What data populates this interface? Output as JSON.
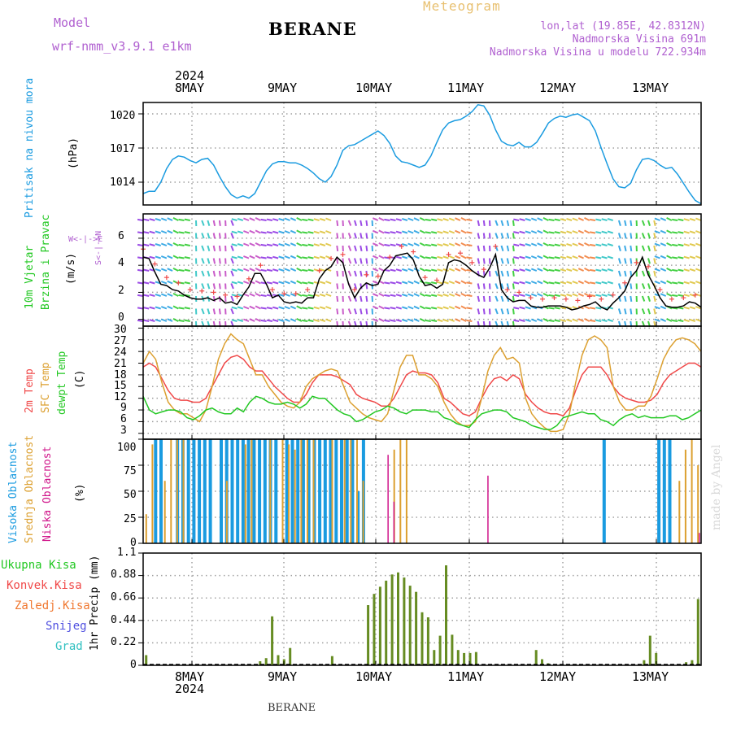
{
  "header": {
    "model_label": "Model",
    "model_name": "wrf-nmm_v3.9.1 e1km",
    "station": "BERANE",
    "meteogram_label": "Meteogram",
    "lonlat": "lon,lat (19.85E, 42.8312N)",
    "elevation": "Nadmorska Visina 691m",
    "model_elevation": "Nadmorska Visina u modelu 722.934m",
    "watermark": "made by Angel",
    "footer_station": "BERANE"
  },
  "colors": {
    "pressure": "#1a9be0",
    "temp2m": "#f04848",
    "sfc": "#dca030",
    "dewpt": "#22c822",
    "high": "#1a9be0",
    "mid": "#dca030",
    "low": "#d0168a",
    "rain": "#668c22",
    "conv": "#e03c3c",
    "grid": "#a0a0a0"
  },
  "axes": {
    "year": "2024",
    "days": [
      "8MAY",
      "9MAY",
      "10MAY",
      "11MAY",
      "12MAY",
      "13MAY"
    ]
  },
  "panels": {
    "pressure": {
      "label": "Pritisak na nivou mora",
      "unit": "(hPa)",
      "ticks": [
        "1014",
        "1017",
        "1020"
      ]
    },
    "wind": {
      "label1": "10m Vjetar",
      "label2": "Brzina i Pravac",
      "unit": "(m/s)",
      "ticks": [
        "0",
        "2",
        "4",
        "6"
      ],
      "compass_ns": "S<-|->N",
      "compass_we": "W<-|->E"
    },
    "temp": {
      "label1": "2m Temp",
      "label2": "SFC Temp",
      "label3": "dewpt Temp",
      "unit": "(C)",
      "ticks": [
        "3",
        "6",
        "9",
        "12",
        "15",
        "18",
        "21",
        "24",
        "27",
        "30"
      ]
    },
    "cloud": {
      "label1": "Visoka Oblacnost",
      "label2": "Srednja Oblacnost",
      "label3": "Niska Oblacnost",
      "unit": "(%)",
      "ticks": [
        "0",
        "25",
        "50",
        "75",
        "100"
      ]
    },
    "precip": {
      "legend": [
        "Ukupna Kisa",
        "Konvek.Kisa",
        "Zaledj.Kisa",
        "Snijeg",
        "Grad"
      ],
      "unit": "1hr Precip (mm)",
      "ticks": [
        "0",
        "0.22",
        "0.44",
        "0.66",
        "0.88",
        "1.1"
      ]
    }
  },
  "chart_data": [
    {
      "type": "line",
      "x_unit": "hours",
      "series": [
        {
          "values": [
            1013.0,
            1013.2,
            1013.2,
            1014.0,
            1015.2,
            1016.0,
            1016.3,
            1016.2,
            1015.9,
            1015.7,
            1016.0,
            1016.1,
            1015.5,
            1014.5,
            1013.6,
            1012.9,
            1012.6,
            1012.8,
            1012.6,
            1013.0,
            1014.0,
            1015.0,
            1015.6,
            1015.8,
            1015.8,
            1015.7,
            1015.7,
            1015.5,
            1015.2,
            1014.8,
            1014.3,
            1014.0,
            1014.5,
            1015.5,
            1016.8,
            1017.2,
            1017.3,
            1017.6,
            1017.9,
            1018.2,
            1018.5,
            1018.1,
            1017.4,
            1016.3,
            1015.8,
            1015.7,
            1015.5,
            1015.3,
            1015.5,
            1016.3,
            1017.5,
            1018.6,
            1019.2,
            1019.4,
            1019.5,
            1019.8,
            1020.2,
            1020.8,
            1020.7,
            1019.9,
            1018.6,
            1017.6,
            1017.3,
            1017.2,
            1017.5,
            1017.1,
            1017.1,
            1017.5,
            1018.3,
            1019.2,
            1019.6,
            1019.8,
            1019.7,
            1019.9,
            1020.0,
            1019.7,
            1019.4,
            1018.5,
            1017.0,
            1015.6,
            1014.3,
            1013.6,
            1013.5,
            1013.9,
            1015.1,
            1016.0,
            1016.1,
            1015.9,
            1015.5,
            1015.2,
            1015.3,
            1014.7,
            1013.9,
            1013.1,
            1012.4,
            1012.1
          ]
        }
      ],
      "ylim": [
        1012,
        1021
      ]
    },
    {
      "type": "line",
      "x_unit": "hours",
      "series": [
        {
          "values": [
            4.6,
            4.5,
            3.5,
            2.6,
            2.5,
            2.2,
            2.1,
            1.8,
            1.6,
            1.5,
            1.5,
            1.6,
            1.4,
            1.6,
            1.2,
            1.3,
            1.1,
            1.8,
            2.4,
            3.4,
            3.4,
            2.6,
            1.6,
            1.8,
            1.3,
            1.2,
            1.3,
            1.2,
            1.6,
            1.6,
            3.0,
            3.6,
            3.9,
            4.6,
            4.2,
            2.6,
            1.6,
            2.3,
            2.7,
            2.5,
            2.6,
            3.6,
            4.0,
            4.7,
            4.8,
            4.9,
            4.4,
            3.2,
            2.5,
            2.6,
            2.3,
            2.6,
            4.2,
            4.4,
            4.3,
            4.0,
            3.6,
            3.3,
            3.1,
            3.8,
            4.8,
            2.2,
            1.6,
            1.3,
            1.4,
            1.4,
            1.0,
            0.9,
            0.9,
            1.0,
            1.0,
            1.0,
            0.9,
            0.7,
            0.8,
            1.0,
            1.1,
            1.3,
            0.9,
            0.7,
            1.2,
            1.6,
            2.1,
            3.1,
            3.6,
            4.6,
            3.3,
            2.5,
            1.6,
            1.0,
            0.9,
            0.9,
            1.0,
            1.3,
            1.2,
            0.9
          ]
        }
      ],
      "ylim": [
        -0.5,
        7.8
      ]
    },
    {
      "type": "line",
      "x_unit": "hours",
      "series": [
        {
          "name": "2m Temp",
          "values": [
            20.0,
            21.0,
            20.0,
            17.0,
            14.0,
            12.0,
            11.5,
            11.5,
            11.0,
            11.0,
            12.0,
            15.0,
            18.0,
            21.0,
            22.5,
            23.0,
            22.0,
            20.0,
            19.0,
            19.0,
            17.0,
            15.0,
            13.5,
            12.0,
            11.0,
            11.0,
            13.0,
            16.0,
            18.0,
            18.0,
            18.0,
            17.5,
            16.5,
            15.5,
            13.0,
            12.0,
            11.5,
            11.0,
            10.0,
            10.0,
            12.0,
            15.0,
            18.0,
            19.0,
            18.5,
            18.5,
            18.0,
            16.0,
            12.0,
            11.0,
            9.5,
            8.0,
            7.5,
            8.5,
            12.0,
            15.0,
            17.0,
            17.5,
            16.5,
            18.0,
            17.0,
            13.0,
            11.0,
            9.5,
            8.5,
            8.0,
            8.0,
            7.5,
            9.5,
            14.0,
            18.0,
            20.0,
            20.0,
            20.0,
            18.0,
            15.0,
            13.0,
            12.0,
            11.5,
            11.0,
            11.0,
            11.5,
            13.0,
            16.0,
            18.0,
            19.0,
            20.0,
            21.0,
            21.0,
            20.0
          ]
        },
        {
          "name": "SFC Temp",
          "values": [
            21.0,
            24.0,
            22.0,
            16.0,
            11.0,
            9.0,
            8.0,
            8.0,
            7.0,
            6.0,
            9.0,
            15.0,
            22.0,
            26.0,
            28.5,
            27.0,
            26.0,
            22.0,
            18.0,
            18.0,
            15.0,
            13.0,
            11.0,
            10.0,
            9.5,
            11.0,
            15.0,
            17.0,
            18.0,
            19.0,
            19.5,
            19.0,
            15.0,
            11.0,
            9.5,
            8.0,
            7.0,
            6.5,
            6.0,
            8.0,
            14.0,
            20.0,
            23.0,
            23.0,
            18.0,
            18.0,
            17.0,
            15.0,
            11.0,
            8.0,
            6.0,
            5.0,
            5.0,
            6.0,
            12.0,
            19.0,
            23.0,
            25.0,
            22.0,
            22.5,
            21.0,
            12.0,
            8.0,
            6.0,
            4.5,
            3.5,
            3.5,
            4.0,
            8.0,
            16.0,
            23.0,
            27.0,
            28.0,
            27.0,
            25.0,
            15.0,
            11.0,
            9.0,
            9.0,
            10.0,
            10.0,
            12.5,
            17.0,
            22.0,
            25.0,
            27.0,
            27.5,
            27.0,
            26.0,
            24.0
          ]
        },
        {
          "name": "dewpt Temp",
          "values": [
            12.5,
            9.0,
            8.0,
            8.5,
            9.0,
            9.0,
            8.5,
            7.0,
            6.5,
            7.5,
            9.0,
            9.5,
            8.5,
            8.0,
            8.0,
            9.5,
            8.5,
            11.0,
            12.5,
            12.0,
            11.0,
            10.5,
            10.5,
            11.0,
            10.5,
            9.5,
            10.5,
            12.5,
            12.0,
            12.0,
            10.5,
            9.0,
            8.0,
            7.5,
            6.0,
            6.5,
            7.5,
            8.5,
            9.0,
            10.0,
            9.5,
            8.5,
            8.0,
            9.0,
            9.0,
            9.0,
            8.5,
            8.5,
            7.0,
            6.5,
            5.5,
            5.0,
            4.5,
            6.5,
            8.0,
            8.5,
            9.0,
            9.0,
            8.5,
            7.0,
            6.5,
            6.0,
            5.0,
            4.5,
            4.0,
            4.0,
            5.0,
            7.0,
            7.5,
            8.0,
            8.5,
            8.0,
            8.0,
            6.5,
            6.0,
            5.0,
            6.5,
            7.5,
            8.0,
            7.0,
            7.5,
            7.0,
            7.0,
            7.0,
            7.5,
            7.5,
            6.5,
            7.0,
            8.0,
            9.0
          ]
        }
      ],
      "ylim": [
        1.5,
        30.5
      ]
    },
    {
      "type": "bar",
      "x_unit": "hours",
      "series": [
        {
          "name": "Visoka Oblacnost",
          "values": [
            0,
            0,
            100,
            100,
            0,
            0,
            100,
            100,
            100,
            100,
            100,
            100,
            100,
            0,
            100,
            100,
            100,
            100,
            100,
            100,
            100,
            100,
            100,
            100,
            100,
            0,
            100,
            100,
            100,
            100,
            100,
            100,
            100,
            100,
            100,
            100,
            100,
            100,
            100,
            50,
            100,
            0,
            0,
            0,
            0,
            0,
            0,
            0,
            0,
            0,
            0,
            0,
            0,
            0,
            0,
            0,
            0,
            0,
            0,
            0,
            0,
            0,
            0,
            0,
            0,
            0,
            0,
            0,
            0,
            0,
            0,
            0,
            0,
            0,
            0,
            0,
            0,
            0,
            0,
            0,
            0,
            0,
            0,
            0,
            100,
            0,
            0,
            0,
            0,
            0,
            0,
            0,
            0,
            0,
            100,
            100,
            100,
            0,
            0,
            0,
            0,
            0
          ]
        },
        {
          "name": "Srednja Oblacnost",
          "values": [
            28,
            95,
            0,
            60,
            100,
            100,
            100,
            0,
            0,
            0,
            0,
            0,
            0,
            60,
            0,
            0,
            95,
            100,
            0,
            0,
            100,
            0,
            100,
            95,
            90,
            100,
            100,
            100,
            0,
            0,
            100,
            0,
            100,
            100,
            100,
            60,
            0,
            0,
            0,
            0,
            90,
            100,
            100,
            0,
            0,
            0,
            0,
            0,
            0,
            0,
            0,
            0,
            0,
            0,
            0,
            0,
            0,
            0,
            0,
            0,
            0,
            0,
            0,
            0,
            0,
            0,
            0,
            0,
            0,
            0,
            0,
            0,
            0,
            0,
            0,
            0,
            0,
            0,
            0,
            0,
            0,
            0,
            0,
            0,
            0,
            0,
            60,
            90,
            100,
            75
          ]
        },
        {
          "name": "Niska Oblacnost",
          "values": [
            0,
            0,
            0,
            0,
            0,
            0,
            0,
            0,
            0,
            0,
            0,
            0,
            0,
            0,
            0,
            0,
            0,
            0,
            0,
            0,
            0,
            0,
            0,
            0,
            0,
            0,
            0,
            0,
            0,
            0,
            0,
            0,
            0,
            0,
            0,
            0,
            0,
            0,
            0,
            0,
            0,
            85,
            40,
            0,
            0,
            0,
            0,
            0,
            0,
            0,
            0,
            0,
            0,
            0,
            0,
            0,
            0,
            0,
            65,
            0,
            0,
            0,
            0,
            0,
            0,
            0,
            0,
            0,
            0,
            0,
            0,
            0,
            0,
            0,
            0,
            0,
            0,
            0,
            0,
            0,
            0,
            0,
            0,
            0,
            0,
            0,
            0,
            0,
            0,
            0,
            0,
            0,
            0,
            0,
            10
          ]
        }
      ],
      "ylim": [
        0,
        100
      ]
    },
    {
      "type": "bar",
      "x_unit": "hours",
      "series": [
        {
          "name": "Ukupna Kisa",
          "values": [
            0.1,
            0,
            0,
            0,
            0,
            0,
            0,
            0,
            0,
            0,
            0,
            0,
            0,
            0,
            0,
            0,
            0,
            0,
            0,
            0.04,
            0.07,
            0.48,
            0.1,
            0.06,
            0.17,
            0,
            0,
            0,
            0,
            0,
            0,
            0.09,
            0,
            0,
            0,
            0,
            0,
            0.59,
            0.7,
            0.77,
            0.83,
            0.89,
            0.91,
            0.86,
            0.78,
            0.72,
            0.52,
            0.47,
            0.15,
            0.29,
            0.98,
            0.3,
            0.15,
            0.12,
            0.12,
            0.13,
            0,
            0,
            0,
            0,
            0,
            0,
            0,
            0,
            0,
            0.15,
            0.06,
            0.02,
            0,
            0,
            0,
            0,
            0,
            0,
            0,
            0,
            0,
            0,
            0,
            0,
            0,
            0,
            0,
            0.05,
            0.29,
            0.12,
            0,
            0,
            0,
            0,
            0.03,
            0.05,
            0.65
          ]
        }
      ],
      "ylim": [
        0,
        1.1
      ]
    }
  ]
}
